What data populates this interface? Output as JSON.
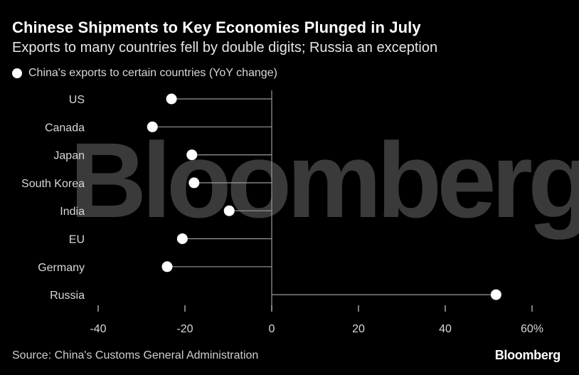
{
  "header": {
    "title": "Chinese Shipments to Key Economies Plunged in July",
    "subtitle": "Exports to many countries fell by double digits; Russia an exception"
  },
  "legend": {
    "label": "China's exports to certain countries (YoY change)"
  },
  "watermark": "Bloomberg",
  "footer": {
    "source": "Source: China's Customs General Administration",
    "brand": "Bloomberg"
  },
  "colors": {
    "background": "#000000",
    "dot": "#ffffff",
    "stem": "#9a9a9a",
    "watermark": "#3a3a3a"
  },
  "chart_data": {
    "type": "dot",
    "title": "Chinese Shipments to Key Economies Plunged in July",
    "subtitle": "Exports to many countries fell by double digits; Russia an exception",
    "series": [
      {
        "name": "China's exports to certain countries (YoY change)",
        "categories": [
          "US",
          "Canada",
          "Japan",
          "South Korea",
          "India",
          "EU",
          "Germany",
          "Russia"
        ],
        "values": [
          -23.1,
          -27.5,
          -18.4,
          -17.9,
          -9.8,
          -20.6,
          -24.1,
          51.7
        ]
      }
    ],
    "xlim": [
      -40,
      60
    ],
    "xticks": [
      -40,
      -20,
      0,
      20,
      40,
      60
    ],
    "xtick_labels": [
      "-40",
      "-20",
      "0",
      "20",
      "40",
      "60%"
    ],
    "xlabel": "",
    "ylabel": ""
  }
}
